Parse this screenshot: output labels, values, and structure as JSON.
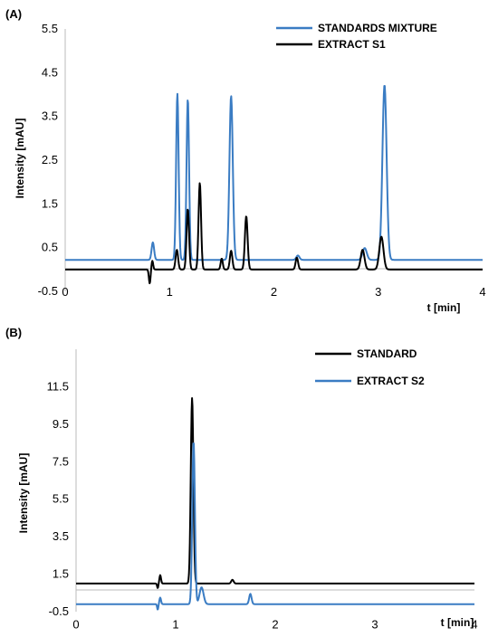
{
  "chart_data": [
    {
      "type": "line",
      "panel_label": "(A)",
      "xlabel": "t [min]",
      "ylabel": "Intensity [mAU]",
      "xlim": [
        0,
        4
      ],
      "ylim": [
        -0.5,
        5.5
      ],
      "xticks": [
        0,
        1,
        2,
        3,
        4
      ],
      "yticks": [
        -0.5,
        0.5,
        1.5,
        2.5,
        3.5,
        4.5,
        5.5
      ],
      "legend_position": "top-right",
      "grid": false,
      "series": [
        {
          "name": "STANDARDS MIXTURE",
          "color": "#3A7CC3",
          "baseline": 0.22,
          "peaks": [
            {
              "x": 0.84,
              "y": 0.4,
              "w": 0.012
            },
            {
              "x": 1.075,
              "y": 3.8,
              "w": 0.012
            },
            {
              "x": 1.175,
              "y": 3.68,
              "w": 0.012
            },
            {
              "x": 1.59,
              "y": 3.75,
              "w": 0.016
            },
            {
              "x": 2.23,
              "y": 0.1,
              "w": 0.015
            },
            {
              "x": 2.87,
              "y": 0.27,
              "w": 0.02
            },
            {
              "x": 3.06,
              "y": 4.0,
              "w": 0.02
            }
          ]
        },
        {
          "name": "EXTRACT S1",
          "color": "#000000",
          "baseline": 0.0,
          "peaks": [
            {
              "x": 0.81,
              "y": -0.32,
              "w": 0.008
            },
            {
              "x": 0.835,
              "y": 0.2,
              "w": 0.008
            },
            {
              "x": 1.07,
              "y": 0.45,
              "w": 0.012
            },
            {
              "x": 1.175,
              "y": 1.38,
              "w": 0.012
            },
            {
              "x": 1.29,
              "y": 1.98,
              "w": 0.012
            },
            {
              "x": 1.5,
              "y": 0.25,
              "w": 0.01
            },
            {
              "x": 1.59,
              "y": 0.43,
              "w": 0.012
            },
            {
              "x": 1.735,
              "y": 1.22,
              "w": 0.013
            },
            {
              "x": 2.22,
              "y": 0.27,
              "w": 0.012
            },
            {
              "x": 2.85,
              "y": 0.45,
              "w": 0.018
            },
            {
              "x": 3.03,
              "y": 0.75,
              "w": 0.02
            }
          ]
        }
      ]
    },
    {
      "type": "line",
      "panel_label": "(B)",
      "xlabel": "t [min]",
      "ylabel": "Intensity [mAU]",
      "xlim": [
        0,
        4
      ],
      "ylim": [
        -0.5,
        13.5
      ],
      "xticks": [
        0,
        1,
        2,
        3,
        4
      ],
      "yticks": [
        -0.5,
        1.5,
        3.5,
        5.5,
        7.5,
        9.5,
        11.5
      ],
      "legend_position": "top-right",
      "grid": false,
      "series": [
        {
          "name": "STANDARD",
          "color": "#000000",
          "baseline": 1.0,
          "peaks": [
            {
              "x": 0.82,
              "y": -0.25,
              "w": 0.006
            },
            {
              "x": 0.845,
              "y": 0.45,
              "w": 0.008
            },
            {
              "x": 1.165,
              "y": 9.9,
              "w": 0.013
            },
            {
              "x": 1.57,
              "y": 0.2,
              "w": 0.012
            }
          ]
        },
        {
          "name": "EXTRACT S2",
          "color": "#3A7CC3",
          "baseline": -0.1,
          "peaks": [
            {
              "x": 0.82,
              "y": -0.3,
              "w": 0.006
            },
            {
              "x": 0.845,
              "y": 0.35,
              "w": 0.008
            },
            {
              "x": 1.18,
              "y": 8.7,
              "w": 0.013
            },
            {
              "x": 1.26,
              "y": 0.9,
              "w": 0.02
            },
            {
              "x": 1.75,
              "y": 0.55,
              "w": 0.012
            }
          ]
        }
      ]
    }
  ]
}
